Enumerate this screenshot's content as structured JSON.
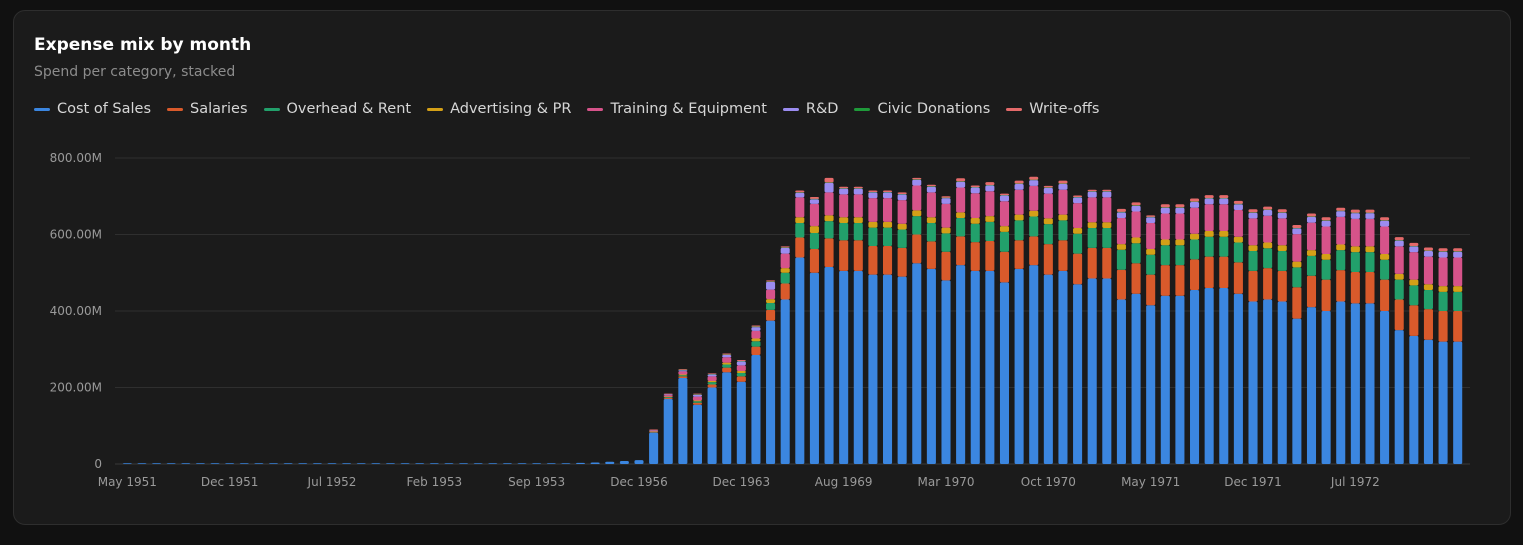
{
  "header": {
    "title": "Expense mix by month",
    "subtitle": "Spend per category, stacked"
  },
  "chart_data": {
    "type": "bar",
    "stacked": true,
    "title": "Expense mix by month",
    "subtitle": "Spend per category, stacked",
    "legend_position": "top-left",
    "grid": true,
    "y_ticks": [
      "0",
      "200.00M",
      "400.00M",
      "600.00M",
      "800.00M"
    ],
    "ylim": [
      0,
      800
    ],
    "y_unit": "M",
    "x_tick_labels": [
      "May 1951",
      "Dec 1951",
      "Jul 1952",
      "Feb 1953",
      "Sep 1953",
      "Dec 1956",
      "Dec 1963",
      "Aug 1969",
      "Mar 1970",
      "Oct 1970",
      "May 1971",
      "Dec 1971",
      "Jul 1972"
    ],
    "x_tick_index": [
      0,
      7,
      14,
      21,
      28,
      35,
      42,
      49,
      56,
      63,
      70,
      77,
      84
    ],
    "categories": [
      "May 1951",
      "Jun 1951",
      "Jul 1951",
      "Aug 1951",
      "Sep 1951",
      "Oct 1951",
      "Nov 1951",
      "Dec 1951",
      "Jan 1952",
      "Feb 1952",
      "Mar 1952",
      "Apr 1952",
      "May 1952",
      "Jun 1952",
      "Jul 1952",
      "Aug 1952",
      "Sep 1952",
      "Oct 1952",
      "Nov 1952",
      "Dec 1952",
      "Jan 1953",
      "Feb 1953",
      "Mar 1953",
      "Apr 1953",
      "May 1953",
      "Jun 1953",
      "Jul 1953",
      "Aug 1953",
      "Sep 1953",
      "",
      "",
      "",
      "",
      "",
      "",
      "Dec 1956",
      "",
      "",
      "",
      "",
      "",
      "",
      "Dec 1963",
      "",
      "",
      "",
      "",
      "",
      "",
      "Aug 1969",
      "Sep 1969",
      "Oct 1969",
      "Nov 1969",
      "Dec 1969",
      "Jan 1970",
      "Feb 1970",
      "Mar 1970",
      "Apr 1970",
      "May 1970",
      "Jun 1970",
      "Jul 1970",
      "Aug 1970",
      "Sep 1970",
      "Oct 1970",
      "Nov 1970",
      "Dec 1970",
      "Jan 1971",
      "Feb 1971",
      "Mar 1971",
      "Apr 1971",
      "May 1971",
      "Jun 1971",
      "Jul 1971",
      "Aug 1971",
      "Sep 1971",
      "Oct 1971",
      "Nov 1971",
      "Dec 1971",
      "Jan 1972",
      "Feb 1972",
      "Mar 1972",
      "Apr 1972",
      "May 1972",
      "Jun 1972",
      "Jul 1972",
      "Aug 1972",
      "Sep 1972",
      "Oct 1972",
      "Nov 1972",
      "Dec 1972",
      "Jan 1973",
      "Feb 1973"
    ],
    "series": [
      {
        "name": "Cost of Sales",
        "color": "#3b86e0",
        "values": [
          1,
          1,
          1,
          1,
          1,
          1,
          1,
          1,
          1,
          1,
          1,
          1,
          1,
          1,
          1,
          1,
          1,
          1,
          1,
          1,
          1,
          1,
          1,
          1,
          1,
          1,
          1,
          1,
          1,
          1,
          2,
          3,
          4,
          6,
          8,
          10,
          82,
          170,
          225,
          155,
          200,
          240,
          215,
          285,
          375,
          430,
          540,
          500,
          515,
          505,
          505,
          495,
          495,
          490,
          525,
          510,
          480,
          520,
          505,
          505,
          475,
          510,
          520,
          495,
          505,
          470,
          485,
          485,
          430,
          445,
          415,
          440,
          440,
          455,
          460,
          460,
          445,
          425,
          430,
          425,
          380,
          410,
          400,
          425,
          420,
          420,
          400,
          350,
          335,
          325,
          320,
          320
        ]
      },
      {
        "name": "Salaries",
        "color": "#d95a2b",
        "values": [
          0,
          0,
          0,
          0,
          0,
          0,
          0,
          0,
          0,
          0,
          0,
          0,
          0,
          0,
          0,
          0,
          0,
          0,
          0,
          0,
          0,
          0,
          0,
          0,
          0,
          0,
          0,
          0,
          0,
          0,
          0,
          0,
          0,
          0,
          0,
          0,
          1,
          3,
          4,
          5,
          8,
          12,
          14,
          22,
          28,
          42,
          52,
          62,
          75,
          80,
          80,
          75,
          75,
          75,
          75,
          72,
          75,
          75,
          75,
          78,
          80,
          75,
          75,
          80,
          80,
          80,
          80,
          80,
          78,
          80,
          80,
          80,
          80,
          80,
          82,
          82,
          82,
          80,
          82,
          80,
          82,
          82,
          82,
          82,
          82,
          82,
          82,
          80,
          80,
          80,
          80,
          80
        ]
      },
      {
        "name": "Overhead & Rent",
        "color": "#22a06b",
        "values": [
          0,
          0,
          0,
          0,
          0,
          0,
          0,
          0,
          0,
          0,
          0,
          0,
          0,
          0,
          0,
          0,
          0,
          0,
          0,
          0,
          0,
          0,
          0,
          0,
          0,
          0,
          0,
          0,
          0,
          0,
          0,
          0,
          0,
          0,
          0,
          0,
          1,
          2,
          3,
          4,
          6,
          8,
          9,
          14,
          18,
          28,
          38,
          42,
          45,
          45,
          45,
          48,
          48,
          48,
          48,
          48,
          48,
          48,
          48,
          50,
          52,
          52,
          52,
          52,
          52,
          52,
          52,
          52,
          52,
          52,
          52,
          52,
          52,
          52,
          52,
          52,
          52,
          52,
          52,
          52,
          52,
          52,
          52,
          52,
          52,
          52,
          52,
          52,
          52,
          50,
          50,
          50
        ]
      },
      {
        "name": "Advertising & PR",
        "color": "#d4a017",
        "values": [
          0,
          0,
          0,
          0,
          0,
          0,
          0,
          0,
          0,
          0,
          0,
          0,
          0,
          0,
          0,
          0,
          0,
          0,
          0,
          0,
          0,
          0,
          0,
          0,
          0,
          0,
          0,
          0,
          0,
          0,
          0,
          0,
          0,
          0,
          0,
          0,
          1,
          1,
          2,
          2,
          3,
          5,
          5,
          7,
          10,
          12,
          15,
          18,
          15,
          15,
          15,
          15,
          15,
          15,
          15,
          15,
          15,
          15,
          15,
          15,
          15,
          15,
          15,
          15,
          15,
          15,
          15,
          15,
          15,
          15,
          15,
          15,
          15,
          15,
          15,
          15,
          15,
          15,
          15,
          15,
          15,
          15,
          15,
          15,
          15,
          15,
          15,
          15,
          15,
          15,
          15,
          15
        ]
      },
      {
        "name": "Training & Equipment",
        "color": "#d6538a",
        "values": [
          0,
          0,
          0,
          0,
          0,
          0,
          0,
          0,
          0,
          0,
          0,
          0,
          0,
          0,
          0,
          0,
          0,
          0,
          0,
          0,
          0,
          0,
          0,
          0,
          0,
          0,
          0,
          0,
          0,
          0,
          0,
          0,
          0,
          0,
          0,
          0,
          2,
          4,
          8,
          10,
          12,
          14,
          15,
          20,
          25,
          38,
          52,
          58,
          60,
          60,
          60,
          62,
          62,
          62,
          65,
          65,
          62,
          65,
          65,
          65,
          65,
          65,
          65,
          65,
          65,
          65,
          65,
          65,
          68,
          68,
          68,
          68,
          68,
          68,
          70,
          70,
          70,
          70,
          70,
          70,
          72,
          72,
          72,
          72,
          72,
          72,
          72,
          72,
          72,
          72,
          75,
          75
        ]
      },
      {
        "name": "R&D",
        "color": "#9b8cf0",
        "values": [
          0,
          0,
          0,
          0,
          0,
          0,
          0,
          0,
          0,
          0,
          0,
          0,
          0,
          0,
          0,
          0,
          0,
          0,
          0,
          0,
          0,
          0,
          0,
          0,
          0,
          0,
          0,
          0,
          0,
          0,
          0,
          0,
          0,
          0,
          0,
          0,
          1,
          2,
          3,
          5,
          5,
          6,
          10,
          10,
          20,
          15,
          12,
          12,
          25,
          15,
          15,
          15,
          15,
          15,
          15,
          15,
          15,
          15,
          15,
          15,
          15,
          15,
          15,
          15,
          15,
          15,
          15,
          15,
          15,
          15,
          15,
          15,
          15,
          15,
          15,
          15,
          15,
          15,
          15,
          15,
          15,
          15,
          15,
          15,
          15,
          15,
          15,
          15,
          15,
          15,
          15,
          15
        ]
      },
      {
        "name": "Civic Donations",
        "color": "#1f9a3a",
        "values": [
          0,
          0,
          0,
          0,
          0,
          0,
          0,
          0,
          0,
          0,
          0,
          0,
          0,
          0,
          0,
          0,
          0,
          0,
          0,
          0,
          0,
          0,
          0,
          0,
          0,
          0,
          0,
          0,
          0,
          0,
          0,
          0,
          0,
          0,
          0,
          0,
          0,
          0,
          1,
          1,
          1,
          1,
          1,
          1,
          1,
          1,
          1,
          1,
          1,
          1,
          1,
          1,
          1,
          1,
          1,
          1,
          1,
          1,
          1,
          1,
          1,
          1,
          1,
          1,
          1,
          1,
          1,
          1,
          1,
          1,
          1,
          1,
          1,
          1,
          1,
          1,
          1,
          1,
          1,
          1,
          1,
          1,
          1,
          1,
          1,
          1,
          1,
          1,
          1,
          1,
          1,
          1
        ]
      },
      {
        "name": "Write-offs",
        "color": "#e46a6a",
        "values": [
          0,
          0,
          0,
          0,
          0,
          0,
          0,
          0,
          0,
          0,
          0,
          0,
          0,
          0,
          0,
          0,
          0,
          0,
          0,
          0,
          0,
          0,
          0,
          0,
          0,
          0,
          0,
          0,
          0,
          0,
          0,
          0,
          0,
          0,
          0,
          0,
          1,
          1,
          2,
          2,
          2,
          3,
          3,
          3,
          3,
          3,
          5,
          5,
          12,
          4,
          4,
          4,
          4,
          4,
          4,
          4,
          4,
          8,
          4,
          8,
          4,
          8,
          8,
          4,
          8,
          4,
          4,
          4,
          8,
          8,
          4,
          8,
          8,
          8,
          8,
          8,
          8,
          8,
          8,
          8,
          8,
          8,
          8,
          8,
          8,
          8,
          8,
          8,
          8,
          8,
          8,
          8
        ]
      }
    ]
  }
}
